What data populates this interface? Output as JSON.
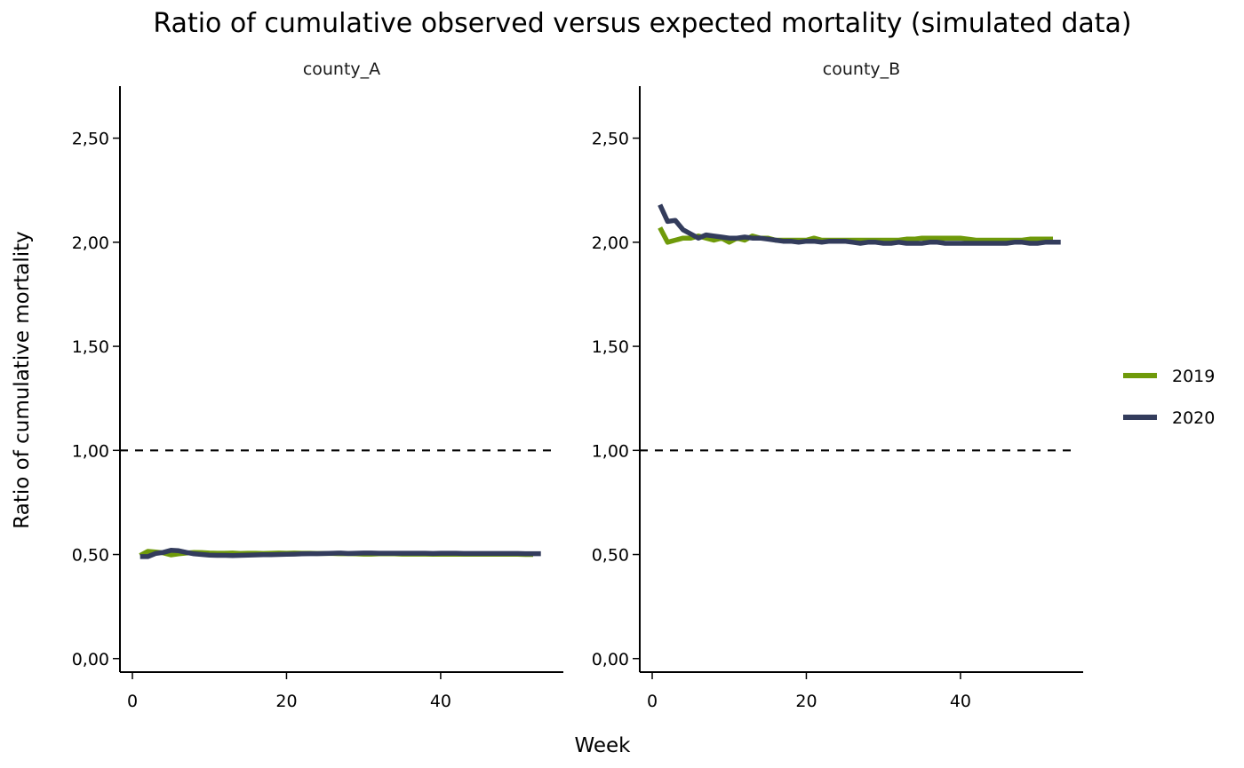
{
  "chart_data": {
    "type": "line",
    "title": "Ratio of cumulative observed versus expected mortality (simulated data)",
    "xlabel": "Week",
    "ylabel": "Ratio of cumulative mortality",
    "xlim": [
      0,
      55
    ],
    "ylim": [
      -0.065,
      2.75
    ],
    "x_ticks": [
      0,
      20,
      40
    ],
    "x_tick_labels": [
      "0",
      "20",
      "40"
    ],
    "y_ticks": [
      0,
      0.5,
      1,
      1.5,
      2,
      2.5
    ],
    "y_tick_labels": [
      "0,00",
      "0,50",
      "1,00",
      "1,50",
      "2,00",
      "2,50"
    ],
    "reference_line": {
      "y": 1.0,
      "style": "dashed",
      "color": "#000000"
    },
    "legend": {
      "placement": "right",
      "entries": [
        "2019",
        "2020"
      ]
    },
    "grid": false,
    "series_colors": {
      "2019": "#6f9a0a",
      "2020": "#333c5c"
    },
    "panels": [
      {
        "name": "county_A",
        "series": [
          {
            "name": "2019",
            "x": [
              1,
              2,
              3,
              4,
              5,
              6,
              7,
              8,
              9,
              10,
              11,
              12,
              13,
              14,
              15,
              16,
              17,
              18,
              19,
              20,
              21,
              22,
              23,
              24,
              25,
              26,
              27,
              28,
              29,
              30,
              31,
              32,
              33,
              34,
              35,
              36,
              37,
              38,
              39,
              40,
              41,
              42,
              43,
              44,
              45,
              46,
              47,
              48,
              49,
              50,
              51,
              52
            ],
            "y": [
              0.495,
              0.515,
              0.512,
              0.508,
              0.498,
              0.503,
              0.507,
              0.51,
              0.509,
              0.507,
              0.506,
              0.506,
              0.507,
              0.505,
              0.506,
              0.506,
              0.505,
              0.506,
              0.507,
              0.506,
              0.507,
              0.506,
              0.506,
              0.505,
              0.505,
              0.505,
              0.504,
              0.504,
              0.503,
              0.502,
              0.502,
              0.503,
              0.503,
              0.503,
              0.502,
              0.502,
              0.502,
              0.502,
              0.501,
              0.502,
              0.501,
              0.501,
              0.501,
              0.501,
              0.501,
              0.501,
              0.501,
              0.501,
              0.501,
              0.501,
              0.5,
              0.5
            ]
          },
          {
            "name": "2020",
            "x": [
              1,
              2,
              3,
              4,
              5,
              6,
              7,
              8,
              9,
              10,
              11,
              12,
              13,
              14,
              15,
              16,
              17,
              18,
              19,
              20,
              21,
              22,
              23,
              24,
              25,
              26,
              27,
              28,
              29,
              30,
              31,
              32,
              33,
              34,
              35,
              36,
              37,
              38,
              39,
              40,
              41,
              42,
              43,
              44,
              45,
              46,
              47,
              48,
              49,
              50,
              51,
              52,
              53
            ],
            "y": [
              0.49,
              0.49,
              0.505,
              0.51,
              0.52,
              0.518,
              0.51,
              0.503,
              0.5,
              0.497,
              0.496,
              0.496,
              0.495,
              0.496,
              0.497,
              0.498,
              0.499,
              0.499,
              0.5,
              0.501,
              0.502,
              0.503,
              0.504,
              0.504,
              0.505,
              0.506,
              0.507,
              0.505,
              0.506,
              0.507,
              0.507,
              0.506,
              0.506,
              0.506,
              0.506,
              0.506,
              0.506,
              0.506,
              0.505,
              0.506,
              0.506,
              0.506,
              0.505,
              0.505,
              0.505,
              0.505,
              0.505,
              0.505,
              0.505,
              0.505,
              0.504,
              0.504,
              0.504
            ]
          }
        ]
      },
      {
        "name": "county_B",
        "series": [
          {
            "name": "2019",
            "x": [
              1,
              2,
              3,
              4,
              5,
              6,
              7,
              8,
              9,
              10,
              11,
              12,
              13,
              14,
              15,
              16,
              17,
              18,
              19,
              20,
              21,
              22,
              23,
              24,
              25,
              26,
              27,
              28,
              29,
              30,
              31,
              32,
              33,
              34,
              35,
              36,
              37,
              38,
              39,
              40,
              41,
              42,
              43,
              44,
              45,
              46,
              47,
              48,
              49,
              50,
              51,
              52
            ],
            "y": [
              2.07,
              2.0,
              2.01,
              2.02,
              2.02,
              2.03,
              2.02,
              2.01,
              2.02,
              2.0,
              2.02,
              2.01,
              2.03,
              2.02,
              2.02,
              2.01,
              2.01,
              2.01,
              2.01,
              2.01,
              2.02,
              2.01,
              2.01,
              2.01,
              2.01,
              2.01,
              2.01,
              2.01,
              2.01,
              2.01,
              2.01,
              2.01,
              2.015,
              2.015,
              2.02,
              2.02,
              2.02,
              2.02,
              2.02,
              2.02,
              2.015,
              2.01,
              2.01,
              2.01,
              2.01,
              2.01,
              2.01,
              2.01,
              2.015,
              2.015,
              2.015,
              2.015
            ]
          },
          {
            "name": "2020",
            "x": [
              1,
              2,
              3,
              4,
              5,
              6,
              7,
              8,
              9,
              10,
              11,
              12,
              13,
              14,
              15,
              16,
              17,
              18,
              19,
              20,
              21,
              22,
              23,
              24,
              25,
              26,
              27,
              28,
              29,
              30,
              31,
              32,
              33,
              34,
              35,
              36,
              37,
              38,
              39,
              40,
              41,
              42,
              43,
              44,
              45,
              46,
              47,
              48,
              49,
              50,
              51,
              52,
              53
            ],
            "y": [
              2.18,
              2.1,
              2.105,
              2.06,
              2.04,
              2.02,
              2.035,
              2.03,
              2.025,
              2.02,
              2.02,
              2.025,
              2.02,
              2.02,
              2.015,
              2.01,
              2.005,
              2.005,
              2.0,
              2.005,
              2.005,
              2.0,
              2.005,
              2.005,
              2.005,
              2.0,
              1.995,
              2.0,
              2.0,
              1.995,
              1.995,
              2.0,
              1.995,
              1.995,
              1.995,
              2.0,
              2.0,
              1.995,
              1.995,
              1.995,
              1.995,
              1.995,
              1.995,
              1.995,
              1.995,
              1.995,
              2.0,
              2.0,
              1.995,
              1.995,
              2.0,
              2.0,
              2.0
            ]
          }
        ]
      }
    ]
  }
}
